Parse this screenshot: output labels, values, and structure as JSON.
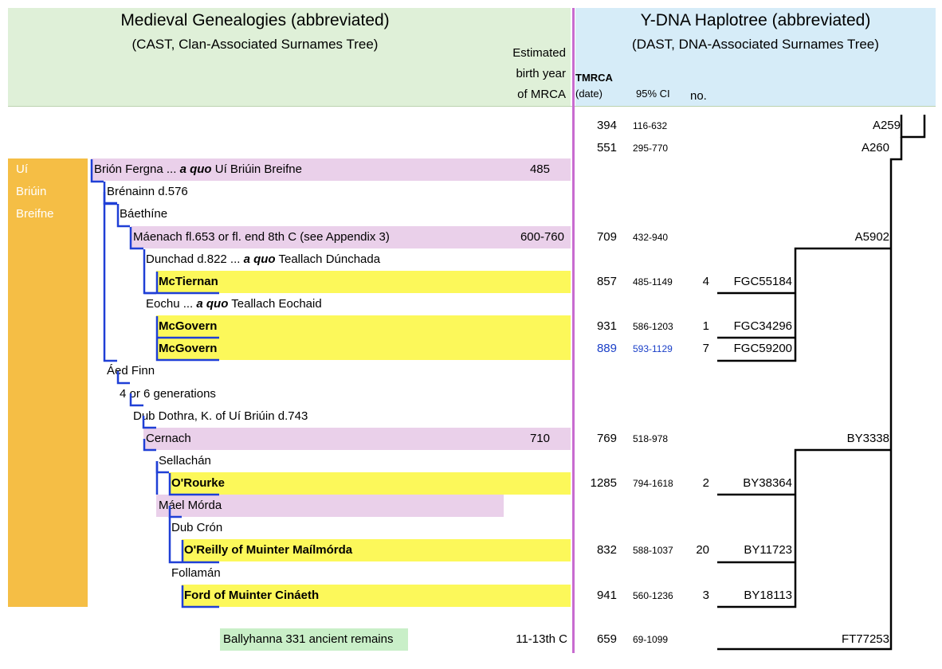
{
  "header": {
    "left_title": "Medieval Genealogies (abbreviated)",
    "left_subtitle": "(CAST, Clan-Associated Surnames Tree)",
    "right_title": "Y-DNA Haplotree (abbreviated)",
    "right_subtitle": "(DAST, DNA-Associated Surnames Tree)",
    "birth_col_line1": "Estimated",
    "birth_col_line2": "birth year",
    "birth_col_line3": "of MRCA",
    "tmrca_line1": "TMRCA",
    "tmrca_line2": "(date)",
    "ci_label": "95% CI",
    "no_label": "no."
  },
  "clan": {
    "line1": "Uí",
    "line2": "Briúin",
    "line3": "Breifne",
    "color": "#f5be45"
  },
  "colors": {
    "purple_band": "#ead0ea",
    "yellow_band": "#fcf85a",
    "green_band": "#c9efc8",
    "tree_line": "#1f3fd6",
    "divider": "#c86bd0"
  },
  "top_rows": [
    {
      "tmrca": "394",
      "ci": "116-632",
      "snp": "A259"
    },
    {
      "tmrca": "551",
      "ci": "295-770",
      "snp": "A260"
    }
  ],
  "genealogy": [
    {
      "label_pre": "Brión Fergna ... ",
      "label_em": "a quo",
      "label_post": "  Uí Briúin Breifne",
      "birth": "485"
    },
    {
      "label": "Brénainn d.576"
    },
    {
      "label": "Báethíne"
    },
    {
      "label": "Máenach fl.653 or fl. end 8th C (see Appendix 3)",
      "birth": "600-760",
      "tmrca": "709",
      "ci": "432-940",
      "snp": "A5902"
    },
    {
      "label_pre": "Dunchad d.822 ... ",
      "label_em": "a quo",
      "label_post": "  Teallach Dúnchada"
    },
    {
      "label": "McTiernan",
      "tmrca": "857",
      "ci": "485-1149",
      "no": "4",
      "snp": "FGC55184"
    },
    {
      "label_pre": "Eochu ... ",
      "label_em": "a quo",
      "label_post": "  Teallach Eochaid"
    },
    {
      "label": "McGovern",
      "tmrca": "931",
      "ci": "586-1203",
      "no": "1",
      "snp": "FGC34296"
    },
    {
      "label": "McGovern",
      "tmrca": "889",
      "ci": "593-1129",
      "no": "7",
      "snp": "FGC59200"
    },
    {
      "label": "Áed Finn"
    },
    {
      "label": "4 or 6 generations"
    },
    {
      "label": "Dub Dothra, K. of Uí Briúin d.743"
    },
    {
      "label": "Cernach",
      "birth": "710",
      "tmrca": "769",
      "ci": "518-978",
      "snp": "BY3338"
    },
    {
      "label": "Sellachán"
    },
    {
      "label": "O'Rourke",
      "tmrca": "1285",
      "ci": "794-1618",
      "no": "2",
      "snp": "BY38364"
    },
    {
      "label": "Máel Mórda"
    },
    {
      "label": "Dub Crón"
    },
    {
      "label": "O'Reilly of Muinter Maílmórda",
      "tmrca": "832",
      "ci": "588-1037",
      "no": "20",
      "snp": "BY11723"
    },
    {
      "label": "Follamán"
    },
    {
      "label": "Ford of Muinter Cináeth",
      "tmrca": "941",
      "ci": "560-1236",
      "no": "3",
      "snp": "BY18113"
    }
  ],
  "ancient": {
    "label": "Ballyhanna 331 ancient remains",
    "birth": "11-13th C",
    "tmrca": "659",
    "ci": "69-1099",
    "snp": "FT77253"
  }
}
